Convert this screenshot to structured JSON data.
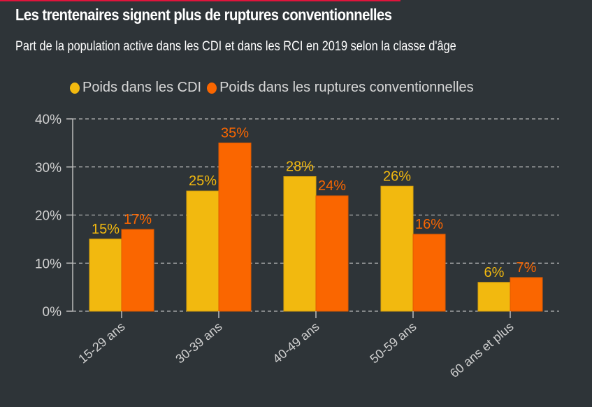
{
  "header": {
    "title": "Les trentenaires signent plus de ruptures conventionnelles",
    "subtitle": "Part de la population active dans les CDI et dans les RCI en 2019 selon la classe d'âge"
  },
  "colors": {
    "accent_bar": "#e0143c",
    "cdi": "#f2b90f",
    "rci": "#fa6600",
    "axis_text": "#d0d0d0",
    "background": "#2e3438"
  },
  "chart_data": {
    "type": "bar",
    "title": "Les trentenaires signent plus de ruptures conventionnelles",
    "subtitle": "Part de la population active dans les CDI et dans les RCI en 2019 selon la classe d'âge",
    "categories": [
      "15-29 ans",
      "30-39 ans",
      "40-49 ans",
      "50-59 ans",
      "60 ans et plus"
    ],
    "series": [
      {
        "name": "Poids dans les CDI",
        "color": "#f2b90f",
        "values": [
          15,
          25,
          28,
          26,
          6
        ],
        "labels": [
          "15%",
          "25%",
          "28%",
          "26%",
          "6%"
        ]
      },
      {
        "name": "Poids dans les ruptures conventionnelles",
        "color": "#fa6600",
        "values": [
          17,
          35,
          24,
          16,
          7
        ],
        "labels": [
          "17%",
          "35%",
          "24%",
          "16%",
          "7%"
        ]
      }
    ],
    "xlabel": "",
    "ylabel": "",
    "ylim": [
      0,
      40
    ],
    "yticks": [
      0,
      10,
      20,
      30,
      40
    ],
    "ytick_labels": [
      "0%",
      "10%",
      "20%",
      "30%",
      "40%"
    ],
    "grid": true,
    "legend": "top"
  }
}
